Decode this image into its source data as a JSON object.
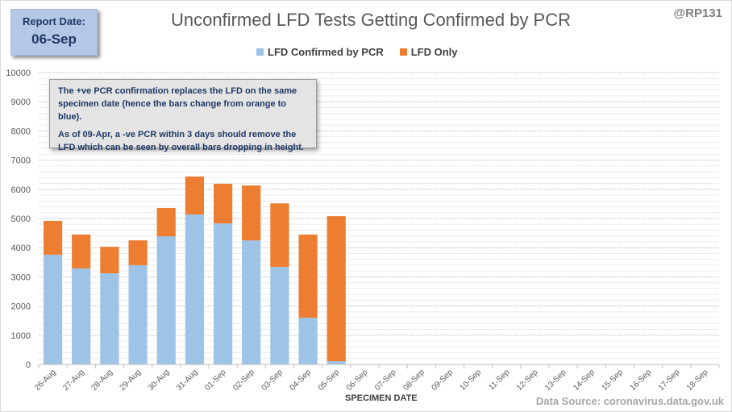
{
  "report": {
    "label": "Report Date:",
    "date": "06-Sep"
  },
  "handle": "@RP131",
  "note": {
    "line1": "The +ve PCR confirmation replaces the LFD on the same specimen date (hence the bars change from orange to blue).",
    "line2": "As of 09-Apr, a -ve PCR within 3 days should remove the LFD which can be seen by overall bars dropping  in height."
  },
  "source": "Data Source: coronavirus.data.gov.uk",
  "colors": {
    "confirmed": "#9dc3e6",
    "lfd_only": "#ed7d31",
    "grid": "#d9d9d9"
  },
  "chart_data": {
    "type": "bar",
    "stacked": true,
    "title": "Unconfirmed LFD Tests Getting Confirmed by PCR",
    "xlabel": "SPECIMEN DATE",
    "ylabel": "",
    "ylim": [
      0,
      10000
    ],
    "yticks": [
      0,
      1000,
      2000,
      3000,
      4000,
      5000,
      6000,
      7000,
      8000,
      9000,
      10000
    ],
    "grid": true,
    "legend_position": "top",
    "categories": [
      "26-Aug",
      "27-Aug",
      "28-Aug",
      "29-Aug",
      "30-Aug",
      "31-Aug",
      "01-Sep",
      "02-Sep",
      "03-Sep",
      "04-Sep",
      "05-Sep",
      "06-Sep",
      "07-Sep",
      "08-Sep",
      "09-Sep",
      "10-Sep",
      "11-Sep",
      "12-Sep",
      "13-Sep",
      "14-Sep",
      "15-Sep",
      "16-Sep",
      "17-Sep",
      "18-Sep"
    ],
    "series": [
      {
        "name": "LFD Confirmed by PCR",
        "color": "#9dc3e6",
        "values": [
          3760,
          3290,
          3120,
          3400,
          4390,
          5140,
          4830,
          4250,
          3340,
          1600,
          110,
          null,
          null,
          null,
          null,
          null,
          null,
          null,
          null,
          null,
          null,
          null,
          null,
          null
        ]
      },
      {
        "name": "LFD Only",
        "color": "#ed7d31",
        "values": [
          1160,
          1160,
          910,
          850,
          970,
          1300,
          1360,
          1880,
          2180,
          2850,
          4970,
          null,
          null,
          null,
          null,
          null,
          null,
          null,
          null,
          null,
          null,
          null,
          null,
          null
        ]
      }
    ]
  }
}
